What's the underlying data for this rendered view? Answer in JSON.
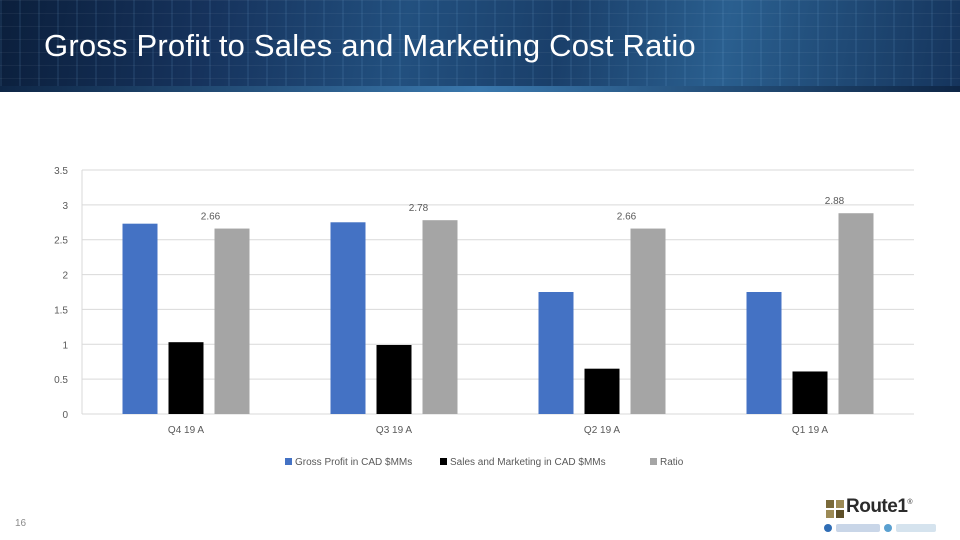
{
  "slide": {
    "title": "Gross Profit to Sales and Marketing Cost Ratio",
    "page_number": "16",
    "logo_text": "Route1",
    "logo_mark": "®"
  },
  "colors": {
    "gross_profit": "#4472c4",
    "sales_marketing": "#000000",
    "ratio": "#a5a5a5",
    "grid": "#d9d9d9",
    "axis_text": "#595959"
  },
  "chart_data": {
    "type": "bar",
    "categories": [
      "Q4 19 A",
      "Q3 19 A",
      "Q2 19 A",
      "Q1 19 A"
    ],
    "series": [
      {
        "name": "Gross Profit in CAD $MMs",
        "values": [
          2.73,
          2.75,
          1.75,
          1.75
        ]
      },
      {
        "name": "Sales and Marketing in CAD $MMs",
        "values": [
          1.03,
          0.99,
          0.65,
          0.61
        ]
      },
      {
        "name": "Ratio",
        "values": [
          2.66,
          2.78,
          2.66,
          2.88
        ],
        "data_labels": [
          "2.66",
          "2.78",
          "2.66",
          "2.88"
        ]
      }
    ],
    "yticks": [
      "0",
      "0.5",
      "1",
      "1.5",
      "2",
      "2.5",
      "3",
      "3.5"
    ],
    "ylim": [
      0,
      3.5
    ],
    "grid": true,
    "legend_position": "bottom"
  }
}
